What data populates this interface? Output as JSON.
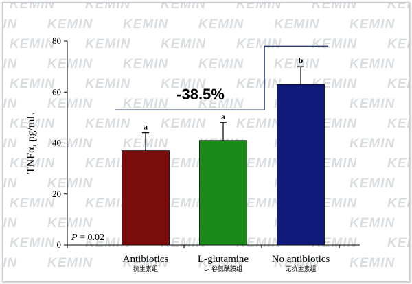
{
  "watermark": {
    "text": "KEMIN"
  },
  "chart_data": {
    "type": "bar",
    "ylabel": "TNFα, pg/mL",
    "ylim": [
      0,
      80
    ],
    "yticks": [
      "0",
      "20",
      "40",
      "60",
      "80"
    ],
    "categories": [
      "Antibiotics",
      "L-glutamine",
      "No antibiotics"
    ],
    "categories_sub": [
      "抗生素组",
      "L- 谷氨酰胺组",
      "无抗生素组"
    ],
    "values": [
      37,
      41,
      63
    ],
    "errors": [
      7,
      7,
      7
    ],
    "significance_letters": [
      "a",
      "a",
      "b"
    ],
    "colors": [
      "#7b0c0c",
      "#1b8a1b",
      "#101a7a"
    ],
    "annotation": "-38.5%",
    "bracket_levels": [
      53,
      78
    ],
    "p_value": {
      "label": "P",
      "text": " = 0.02"
    },
    "grid": false
  }
}
